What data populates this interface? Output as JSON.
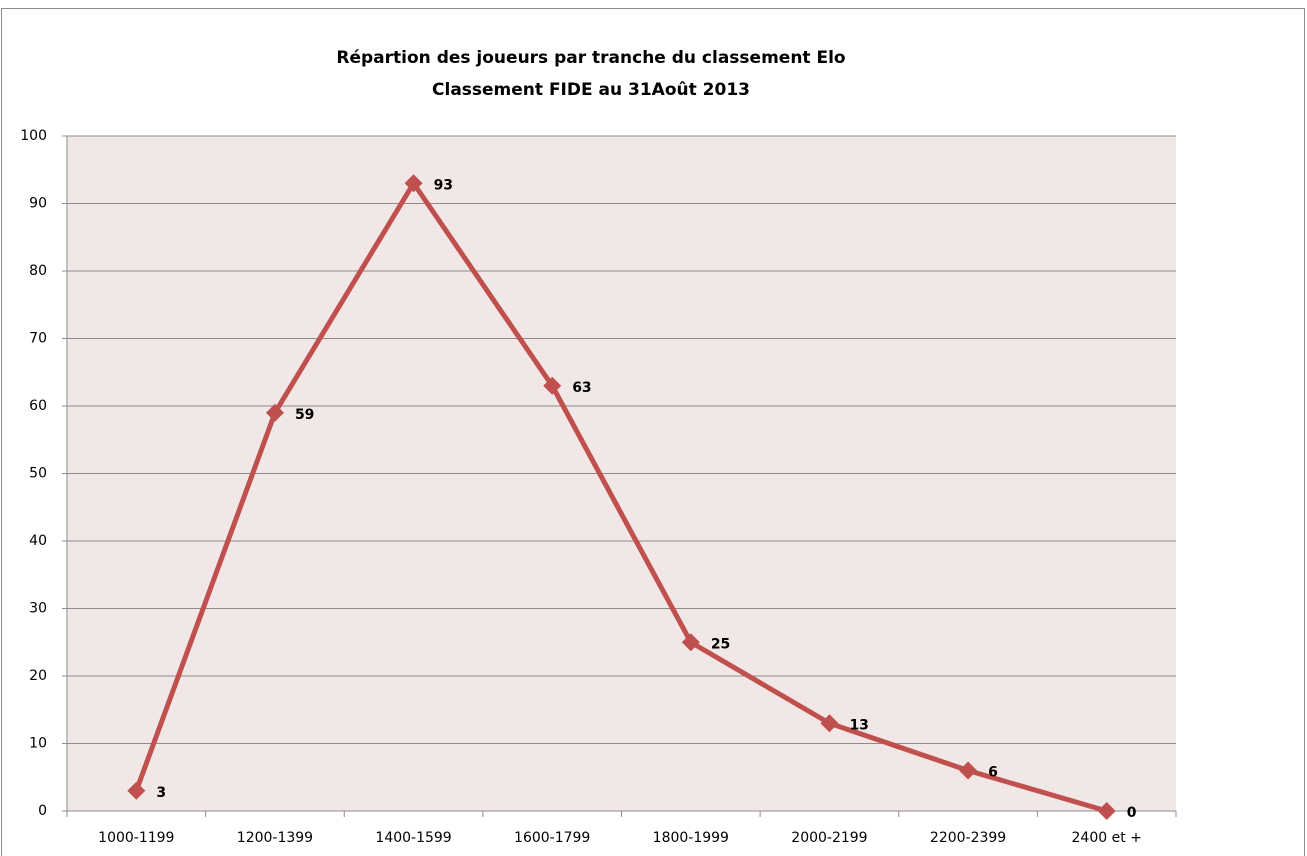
{
  "chart_data": {
    "type": "line",
    "title": "Répartion des joueurs par tranche du classement Elo",
    "subtitle": "Classement FIDE au 31Août 2013",
    "categories": [
      "1000-1199",
      "1200-1399",
      "1400-1599",
      "1600-1799",
      "1800-1999",
      "2000-2199",
      "2200-2399",
      "2400 et +"
    ],
    "series": [
      {
        "name": "Joueurs",
        "color": "#c0504d",
        "values": [
          3,
          59,
          93,
          63,
          25,
          13,
          6,
          0
        ]
      }
    ],
    "ylim": [
      0,
      100
    ],
    "yticks": [
      0,
      10,
      20,
      30,
      40,
      50,
      60,
      70,
      80,
      90,
      100
    ],
    "grid": true
  }
}
